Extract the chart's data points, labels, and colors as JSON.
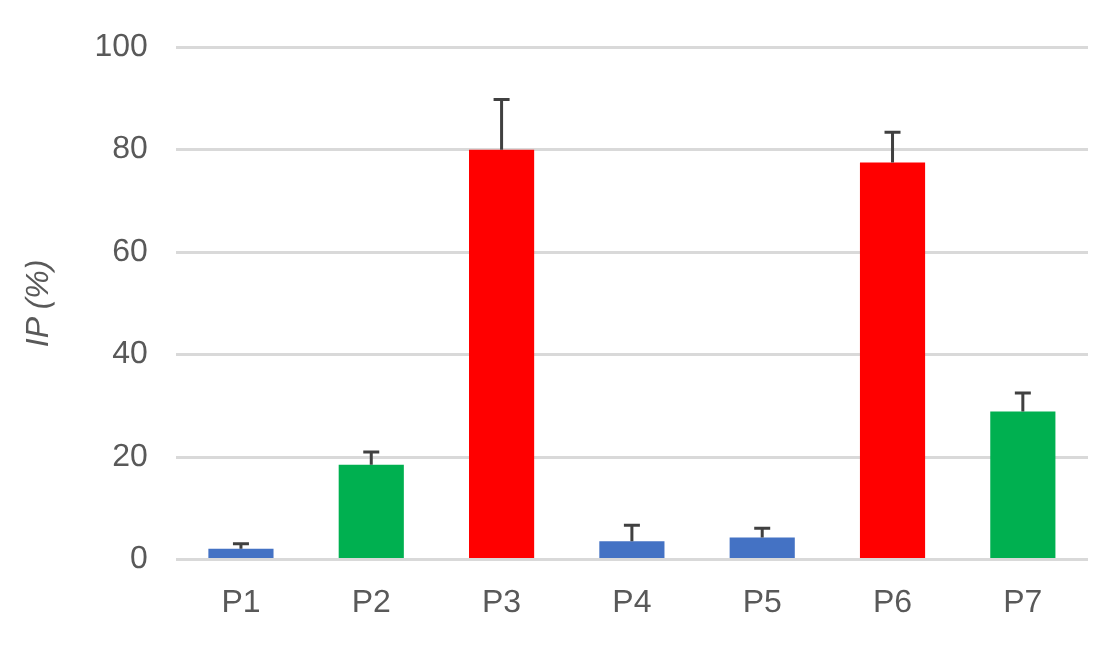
{
  "chart_data": {
    "type": "bar",
    "ylabel": "IP (%)",
    "categories": [
      "P1",
      "P2",
      "P3",
      "P4",
      "P5",
      "P6",
      "P7"
    ],
    "values": [
      2.1,
      18.5,
      80,
      3.6,
      4.3,
      77.5,
      28.9
    ],
    "colors": [
      "#4472c4",
      "#00b050",
      "#ff0000",
      "#4472c4",
      "#4472c4",
      "#ff0000",
      "#00b050"
    ],
    "errors": [
      [
        2.1,
        3.1
      ],
      [
        18.5,
        21
      ],
      [
        80,
        89.8
      ],
      [
        3.6,
        6.7
      ],
      [
        4.3,
        6.1
      ],
      [
        77.5,
        83.4
      ],
      [
        28.9,
        32.5
      ]
    ],
    "ylim": [
      0,
      100
    ],
    "yticks": [
      0,
      20,
      40,
      60,
      80,
      100
    ],
    "grid": "y",
    "legend": false
  }
}
